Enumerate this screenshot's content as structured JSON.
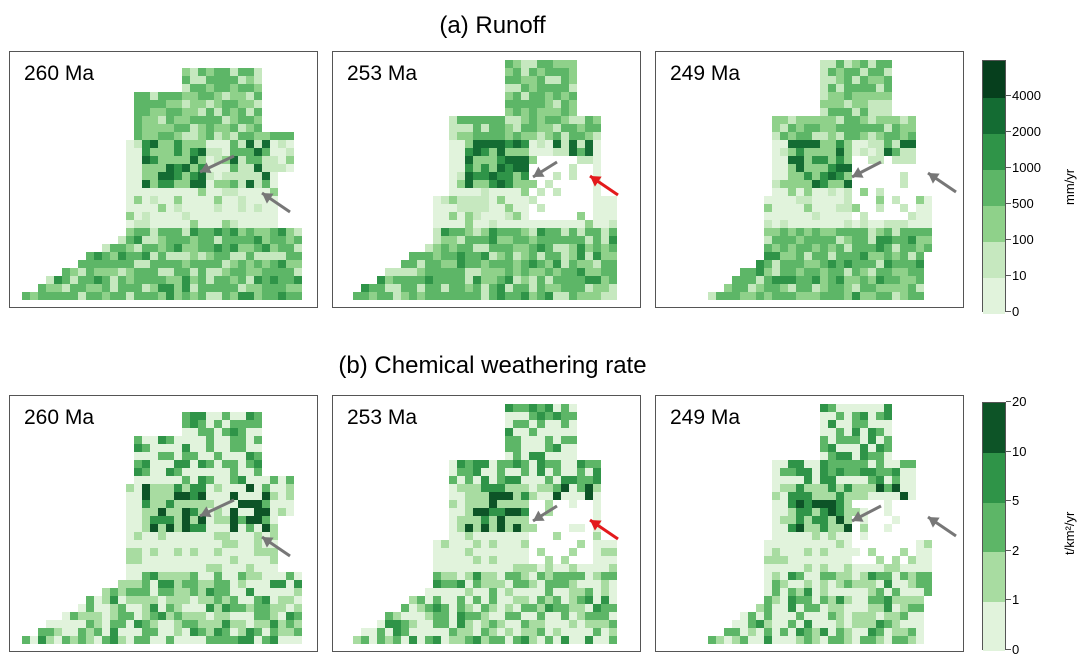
{
  "chart_data": [
    {
      "type": "heatmap",
      "title": "(a) Runoff",
      "panels": [
        {
          "label": "260 Ma"
        },
        {
          "label": "253 Ma"
        },
        {
          "label": "249 Ma"
        }
      ],
      "colorbar": {
        "unit": "mm/yr",
        "ticks": [
          "0",
          "10",
          "100",
          "500",
          "1000",
          "2000",
          "4000"
        ],
        "colors": [
          "#e1f3dc",
          "#c6e8bf",
          "#8fd18a",
          "#5db667",
          "#2f9448",
          "#146c33",
          "#063f1d"
        ]
      },
      "arrows": {
        "gray": "#777777",
        "red": "#e31a1c"
      }
    },
    {
      "type": "heatmap",
      "title": "(b) Chemical weathering rate",
      "panels": [
        {
          "label": "260 Ma"
        },
        {
          "label": "253 Ma"
        },
        {
          "label": "249 Ma"
        }
      ],
      "colorbar": {
        "unit": "t/km²/yr",
        "ticks": [
          "0",
          "1",
          "2",
          "5",
          "10",
          "20"
        ],
        "colors": [
          "#e1f3dc",
          "#a8dca1",
          "#5db667",
          "#2f9448",
          "#0d5427"
        ]
      },
      "arrows": {
        "gray": "#777777",
        "red": "#e31a1c"
      }
    }
  ]
}
